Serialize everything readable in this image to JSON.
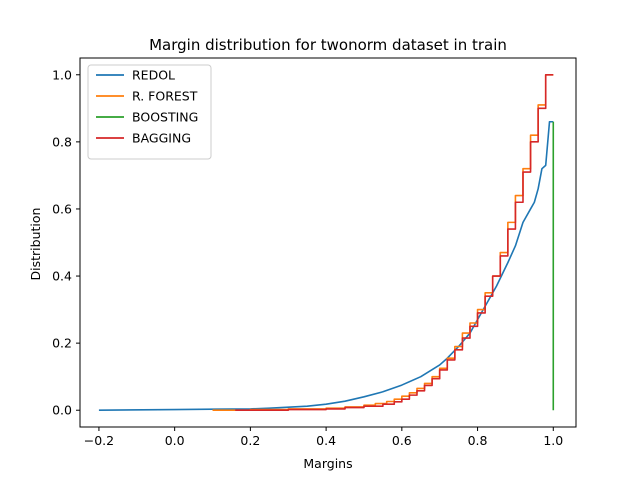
{
  "chart_data": {
    "type": "line",
    "title": "Margin distribution for twonorm dataset in train",
    "xlabel": "Margins",
    "ylabel": "Distribution",
    "xlim": [
      -0.25,
      1.06
    ],
    "ylim": [
      -0.05,
      1.05
    ],
    "xticks": [
      -0.2,
      0.0,
      0.2,
      0.4,
      0.6,
      0.8,
      1.0
    ],
    "xtick_labels": [
      "−0.2",
      "0.0",
      "0.2",
      "0.4",
      "0.6",
      "0.8",
      "1.0"
    ],
    "yticks": [
      0.0,
      0.2,
      0.4,
      0.6,
      0.8,
      1.0
    ],
    "ytick_labels": [
      "0.0",
      "0.2",
      "0.4",
      "0.6",
      "0.8",
      "1.0"
    ],
    "grid": false,
    "legend_position": "upper-left",
    "series": [
      {
        "name": "REDOL",
        "color": "#1f77b4",
        "step": false,
        "x": [
          -0.2,
          0.0,
          0.1,
          0.2,
          0.25,
          0.3,
          0.35,
          0.4,
          0.45,
          0.5,
          0.55,
          0.6,
          0.65,
          0.7,
          0.72,
          0.75,
          0.78,
          0.8,
          0.82,
          0.85,
          0.88,
          0.9,
          0.92,
          0.94,
          0.95,
          0.96,
          0.97,
          0.98,
          0.99,
          1.0
        ],
        "y": [
          0.0,
          0.002,
          0.003,
          0.004,
          0.006,
          0.009,
          0.012,
          0.018,
          0.027,
          0.04,
          0.055,
          0.075,
          0.1,
          0.135,
          0.155,
          0.19,
          0.23,
          0.27,
          0.31,
          0.37,
          0.44,
          0.49,
          0.56,
          0.6,
          0.62,
          0.66,
          0.72,
          0.73,
          0.86,
          0.86
        ]
      },
      {
        "name": "R. FOREST",
        "color": "#ff7f0e",
        "step": true,
        "x": [
          0.1,
          0.2,
          0.3,
          0.4,
          0.45,
          0.5,
          0.53,
          0.56,
          0.58,
          0.6,
          0.62,
          0.64,
          0.66,
          0.68,
          0.7,
          0.72,
          0.74,
          0.76,
          0.78,
          0.8,
          0.82,
          0.84,
          0.86,
          0.88,
          0.9,
          0.92,
          0.94,
          0.96,
          0.98,
          1.0
        ],
        "y": [
          0.0,
          0.002,
          0.004,
          0.006,
          0.01,
          0.015,
          0.02,
          0.026,
          0.033,
          0.042,
          0.052,
          0.065,
          0.08,
          0.1,
          0.125,
          0.155,
          0.19,
          0.23,
          0.26,
          0.3,
          0.35,
          0.4,
          0.47,
          0.56,
          0.64,
          0.72,
          0.82,
          0.91,
          1.0,
          1.0
        ]
      },
      {
        "name": "BOOSTING",
        "color": "#2ca02c",
        "step": false,
        "x": [
          1.0,
          1.0
        ],
        "y": [
          0.0,
          0.86
        ]
      },
      {
        "name": "BAGGING",
        "color": "#d62728",
        "step": true,
        "x": [
          0.16,
          0.3,
          0.4,
          0.45,
          0.5,
          0.55,
          0.58,
          0.6,
          0.62,
          0.64,
          0.66,
          0.68,
          0.7,
          0.72,
          0.74,
          0.76,
          0.78,
          0.8,
          0.82,
          0.84,
          0.86,
          0.88,
          0.9,
          0.92,
          0.94,
          0.96,
          0.98,
          1.0
        ],
        "y": [
          0.0,
          0.002,
          0.004,
          0.008,
          0.012,
          0.018,
          0.025,
          0.033,
          0.045,
          0.058,
          0.074,
          0.094,
          0.12,
          0.15,
          0.18,
          0.215,
          0.25,
          0.29,
          0.34,
          0.4,
          0.46,
          0.54,
          0.62,
          0.71,
          0.8,
          0.9,
          1.0,
          1.0
        ]
      }
    ]
  }
}
